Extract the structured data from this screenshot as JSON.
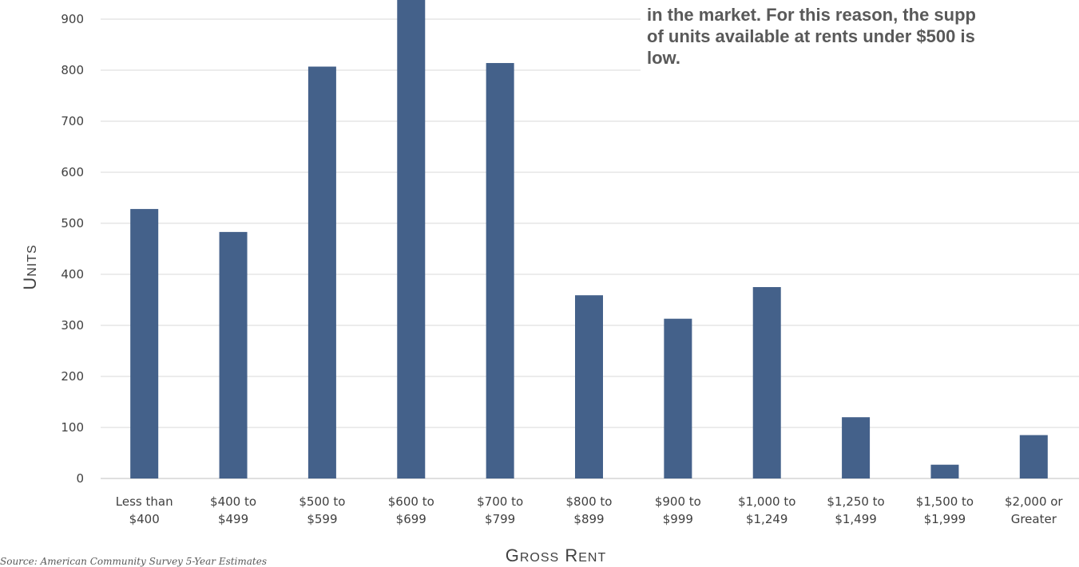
{
  "chart_data": {
    "type": "bar",
    "categories": [
      [
        "Less than",
        "$400"
      ],
      [
        "$400 to",
        "$499"
      ],
      [
        "$500 to",
        "$599"
      ],
      [
        "$600 to",
        "$699"
      ],
      [
        "$700 to",
        "$799"
      ],
      [
        "$800 to",
        "$899"
      ],
      [
        "$900 to",
        "$999"
      ],
      [
        "$1,000 to",
        "$1,249"
      ],
      [
        "$1,250 to",
        "$1,499"
      ],
      [
        "$1,500 to",
        "$1,999"
      ],
      [
        "$2,000 or",
        "Greater"
      ]
    ],
    "values": [
      528,
      483,
      807,
      950,
      814,
      359,
      313,
      375,
      120,
      27,
      85
    ],
    "ylim": [
      0,
      950
    ],
    "yticks": [
      0,
      100,
      200,
      300,
      400,
      500,
      600,
      700,
      800,
      900
    ],
    "xlabel": "Gross Rent",
    "ylabel": "Units",
    "bar_color": "#44618A",
    "grid": true
  },
  "callout": {
    "lines": [
      "in the market.  For this reason, the supp",
      "of units available at rents under $500 is",
      "low."
    ]
  },
  "source": "Source: American Community Survey 5-Year Estimates"
}
